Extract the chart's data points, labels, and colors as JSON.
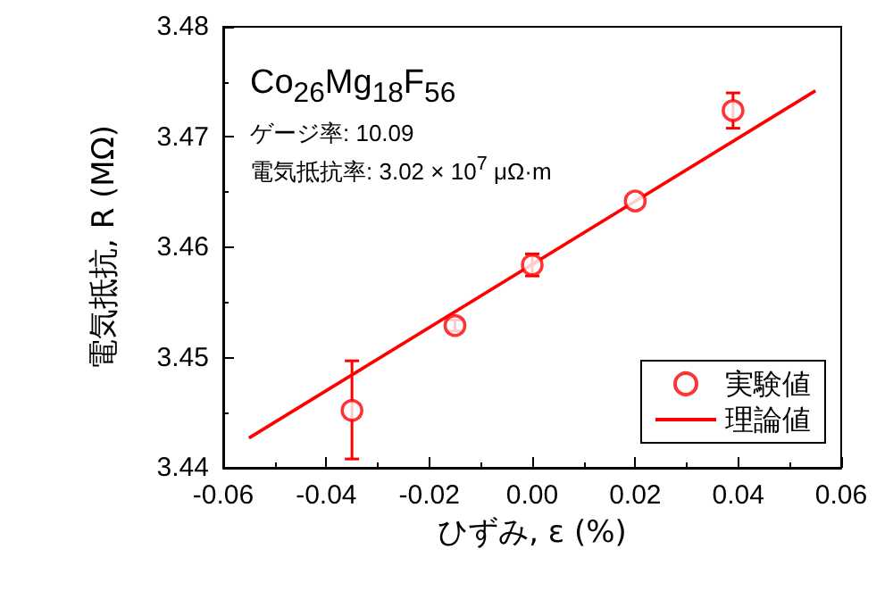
{
  "chart_data": {
    "type": "scatter",
    "xlabel": "ひずみ, ε (%)",
    "ylabel": "電気抵抗, R (MΩ)",
    "xlim": [
      -0.06,
      0.06
    ],
    "xticks": [
      -0.06,
      -0.04,
      -0.02,
      {
        "value": 0,
        "label": "0.00"
      },
      0.02,
      0.04,
      0.06
    ],
    "ylim": [
      3.44,
      3.48
    ],
    "yticks": [
      3.44,
      3.45,
      3.46,
      3.47,
      3.48
    ],
    "series": [
      {
        "name": "実験値",
        "color": "#ff0000",
        "marker": "circle",
        "x": [
          -0.035,
          -0.015,
          0,
          0.02,
          0.039
        ],
        "values": [
          3.4452,
          3.4529,
          3.4584,
          3.4642,
          3.4724
        ],
        "errors": [
          [
            3.4408,
            3.4497
          ],
          0.0005,
          0.001,
          null,
          0.0016
        ]
      },
      {
        "name": "理論値",
        "type": "line",
        "color": "#ff0000",
        "line_style": "solid",
        "x": [
          -0.055,
          0.055
        ],
        "values": [
          3.4427,
          3.4742
        ]
      }
    ],
    "annotations": [
      "Co$_{26}$Mg$_{18}$F$_{56}$",
      "ゲージ率: 10.09",
      "電気抵抗率: 3.02 × 10$^{7}$ μΩ·m"
    ],
    "legend": "bottom right",
    "grid": false
  }
}
